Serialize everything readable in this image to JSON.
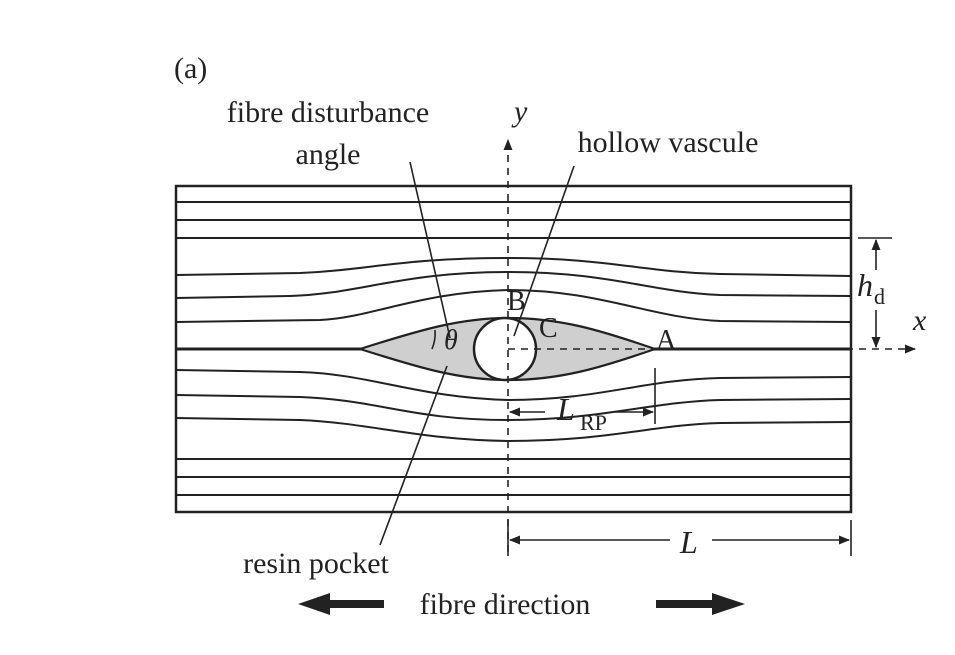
{
  "panel_label": "(a)",
  "labels": {
    "fibre_disturbance_angle_line1": "fibre disturbance",
    "fibre_disturbance_angle_line2": "angle",
    "hollow_vascule": "hollow vascule",
    "resin_pocket": "resin pocket",
    "fibre_direction": "fibre direction",
    "point_a": "A",
    "point_b": "B",
    "point_c": "C",
    "theta": "θ",
    "axis_x": "x",
    "axis_y": "y",
    "length_l": "L",
    "length_lrp_main": "L",
    "length_lrp_sub": "RP",
    "height_hd_main": "h",
    "height_hd_sub": "d"
  },
  "colors": {
    "ink": "#222222",
    "resin_fill": "#cfcfcf",
    "background": "#ffffff"
  }
}
